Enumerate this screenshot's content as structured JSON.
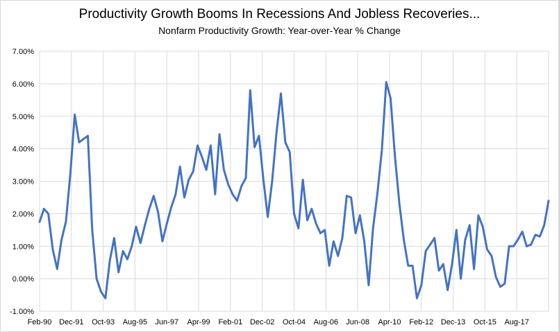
{
  "chart_data": {
    "type": "line",
    "title": "Productivity Growth Booms In Recessions And Jobless Recoveries...",
    "subtitle": "Nonfarm Productivity Growth: Year-over-Year % Change",
    "ylim": [
      -1.0,
      7.0
    ],
    "y_ticks": [
      "-1.00%",
      "0.00%",
      "1.00%",
      "2.00%",
      "3.00%",
      "4.00%",
      "5.00%",
      "6.00%",
      "7.00%"
    ],
    "x_tick_labels": [
      "Feb-90",
      "Dec-91",
      "Oct-93",
      "Aug-95",
      "Jun-97",
      "Apr-99",
      "Feb-01",
      "Dec-02",
      "Oct-04",
      "Aug-06",
      "Jun-08",
      "Apr-10",
      "Feb-12",
      "Dec-13",
      "Oct-15",
      "Aug-17"
    ],
    "grid": true,
    "series": [
      {
        "color": "#4472c4",
        "values": [
          1.75,
          2.15,
          2.0,
          0.9,
          0.3,
          1.2,
          1.75,
          3.2,
          5.05,
          4.2,
          4.3,
          4.4,
          1.5,
          0.0,
          -0.4,
          -0.6,
          0.55,
          1.25,
          0.2,
          0.85,
          0.6,
          1.0,
          1.6,
          1.1,
          1.65,
          2.15,
          2.55,
          2.05,
          1.15,
          1.7,
          2.2,
          2.6,
          3.45,
          2.5,
          3.05,
          3.3,
          4.1,
          3.75,
          3.35,
          4.1,
          2.6,
          4.45,
          3.35,
          2.9,
          2.6,
          2.4,
          2.85,
          3.1,
          5.8,
          4.05,
          4.4,
          3.05,
          1.9,
          3.0,
          4.5,
          5.7,
          4.2,
          3.9,
          2.0,
          1.55,
          3.05,
          1.8,
          2.15,
          1.7,
          1.4,
          1.5,
          0.4,
          1.15,
          0.7,
          1.25,
          2.55,
          2.5,
          1.4,
          1.95,
          1.15,
          -0.2,
          1.55,
          2.65,
          3.95,
          6.05,
          5.55,
          3.75,
          2.3,
          1.2,
          0.4,
          0.4,
          -0.6,
          -0.2,
          0.85,
          1.05,
          1.25,
          0.25,
          0.45,
          -0.35,
          0.45,
          1.5,
          0.0,
          1.2,
          1.65,
          0.3,
          1.95,
          1.6,
          0.9,
          0.7,
          0.05,
          -0.25,
          -0.15,
          1.0,
          1.0,
          1.2,
          1.45,
          1.0,
          1.05,
          1.35,
          1.3,
          1.65,
          2.4
        ]
      }
    ]
  }
}
